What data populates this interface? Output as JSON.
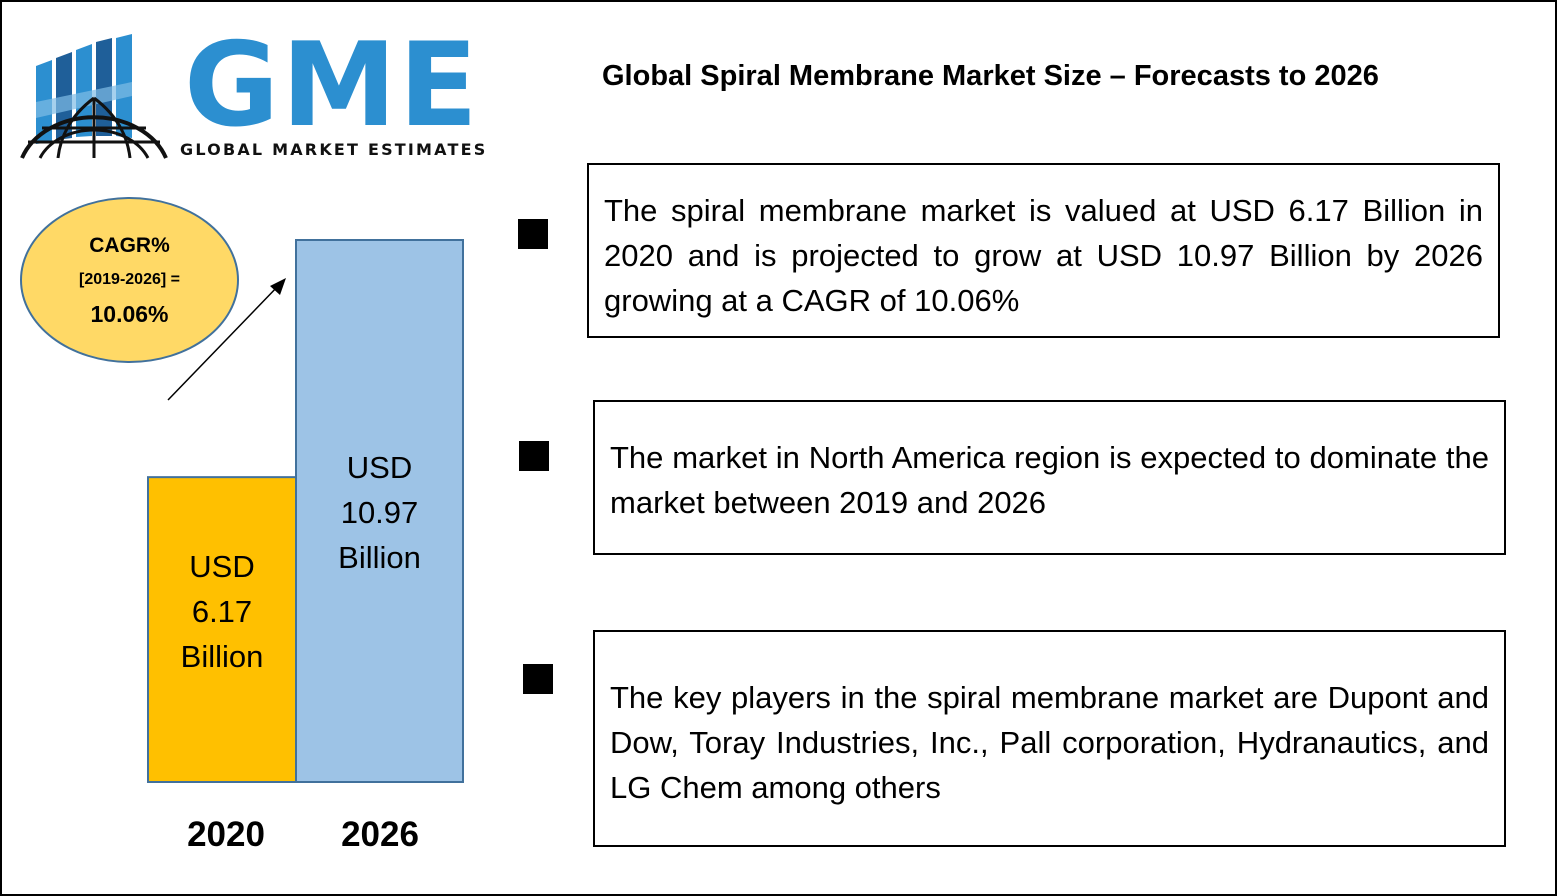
{
  "logo": {
    "letters": "GME",
    "subtitle": "GLOBAL MARKET ESTIMATES"
  },
  "title": "Global Spiral Membrane Market Size – Forecasts to 2026",
  "cagr": {
    "line1": "CAGR%",
    "line2": "[2019-2026] =",
    "line3": "10.06%"
  },
  "bullets": [
    "The spiral membrane market is valued at USD 6.17 Billion in 2020 and is projected to grow at USD 10.97 Billion by 2026 growing at a CAGR of 10.06%",
    "The market in North America region is expected to dominate the market between 2019 and 2026",
    "The key players in the spiral membrane market are Dupont and Dow, Toray Industries, Inc., Pall corporation, Hydranautics,  and LG Chem among others"
  ],
  "colors": {
    "bar_2020": "#ffc000",
    "bar_2026": "#9dc3e6",
    "bar_border": "#41719c",
    "logo_blue": "#2c8fd0",
    "cagr_fill": "#ffd966"
  },
  "chart_data": {
    "type": "bar",
    "categories": [
      "2020",
      "2026"
    ],
    "values": [
      6.17,
      10.97
    ],
    "unit": "USD Billion",
    "data_labels": [
      [
        "USD",
        "6.17",
        "Billion"
      ],
      [
        "USD",
        "10.97",
        "Billion"
      ]
    ],
    "ylim": [
      0,
      11
    ],
    "grid": false,
    "legend": "none"
  }
}
